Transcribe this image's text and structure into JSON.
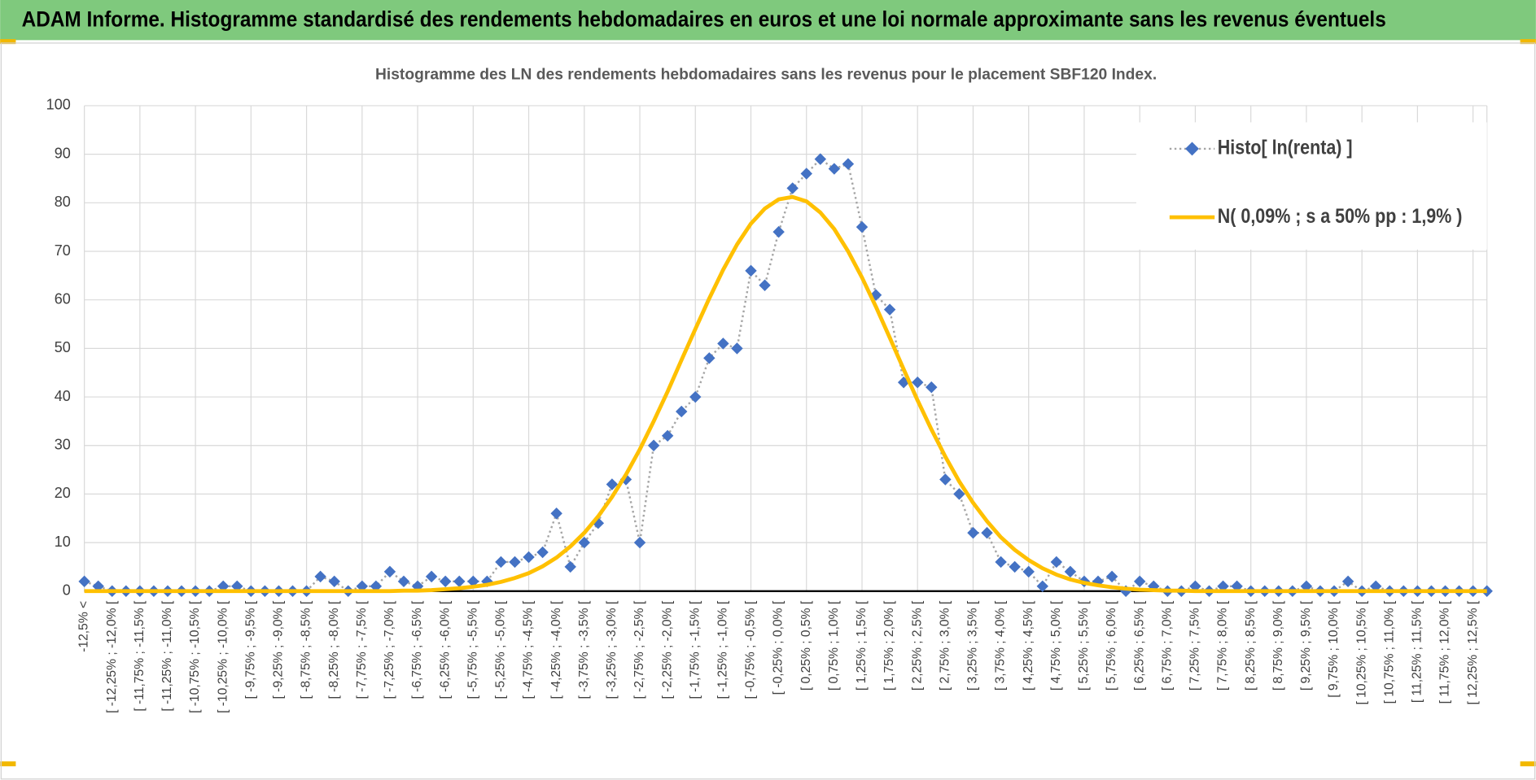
{
  "header": {
    "title": "ADAM Informe. Histogramme standardisé des rendements hebdomadaires en euros et une loi normale approximante sans les revenus éventuels"
  },
  "chart_data": {
    "type": "line",
    "title": "Histogramme  des LN des rendements hebdomadaires sans les revenus pour le placement SBF120  Index.",
    "categories": [
      "-12,5% <",
      null,
      "[ -12,25% ; -12,0% [",
      null,
      "[ -11,75% ; -11,5% [",
      null,
      "[ -11,25% ; -11,0% [",
      null,
      "[ -10,75% ; -10,5% [",
      null,
      "[ -10,25% ; -10,0% [",
      null,
      "[ -9,75% ; -9,5% [",
      null,
      "[ -9,25% ; -9,0% [",
      null,
      "[ -8,75% ; -8,5% [",
      null,
      "[ -8,25% ; -8,0% [",
      null,
      "[ -7,75% ; -7,5% [",
      null,
      "[ -7,25% ; -7,0% [",
      null,
      "[ -6,75% ; -6,5% [",
      null,
      "[ -6,25% ; -6,0% [",
      null,
      "[ -5,75% ; -5,5% [",
      null,
      "[ -5,25% ; -5,0% [",
      null,
      "[ -4,75% ; -4,5% [",
      null,
      "[ -4,25% ; -4,0% [",
      null,
      "[ -3,75% ; -3,5% [",
      null,
      "[ -3,25% ; -3,0% [",
      null,
      "[ -2,75% ; -2,5% [",
      null,
      "[ -2,25% ; -2,0% [",
      null,
      "[ -1,75% ; -1,5% [",
      null,
      "[ -1,25% ; -1,0% [",
      null,
      "[ -0,75% ; -0,5% [",
      null,
      "[ -0,25% ; 0,0% [",
      null,
      "[ 0,25% ; 0,5% [",
      null,
      "[ 0,75% ; 1,0% [",
      null,
      "[ 1,25% ; 1,5% [",
      null,
      "[ 1,75% ; 2,0% [",
      null,
      "[ 2,25% ; 2,5% [",
      null,
      "[ 2,75% ; 3,0% [",
      null,
      "[ 3,25% ; 3,5% [",
      null,
      "[ 3,75% ; 4,0% [",
      null,
      "[ 4,25% ; 4,5% [",
      null,
      "[ 4,75% ; 5,0% [",
      null,
      "[ 5,25% ; 5,5% [",
      null,
      "[ 5,75% ; 6,0% [",
      null,
      "[ 6,25% ; 6,5% [",
      null,
      "[ 6,75% ; 7,0% [",
      null,
      "[ 7,25% ; 7,5% [",
      null,
      "[ 7,75% ; 8,0% [",
      null,
      "[ 8,25% ; 8,5% [",
      null,
      "[ 8,75% ; 9,0% [",
      null,
      "[ 9,25% ; 9,5% [",
      null,
      "[ 9,75% ; 10,0% [",
      null,
      "[ 10,25% ; 10,5% [",
      null,
      "[ 10,75% ; 11,0% [",
      null,
      "[ 11,25% ; 11,5% [",
      null,
      "[ 11,75% ; 12,0% [",
      null,
      "[ 12,25% ; 12,5% [",
      null
    ],
    "series": [
      {
        "name": "Histo[ ln(renta) ]",
        "color": "#4472c4",
        "line_color": "#a5a5a5",
        "line_style": "dotted",
        "marker": "diamond",
        "values": [
          2,
          1,
          0,
          0,
          0,
          0,
          0,
          0,
          0,
          0,
          1,
          1,
          0,
          0,
          0,
          0,
          0,
          3,
          2,
          0,
          1,
          1,
          4,
          2,
          1,
          3,
          2,
          2,
          2,
          2,
          6,
          6,
          7,
          8,
          16,
          5,
          10,
          14,
          22,
          23,
          10,
          30,
          32,
          37,
          40,
          48,
          51,
          50,
          66,
          63,
          74,
          83,
          86,
          89,
          87,
          88,
          75,
          61,
          58,
          43,
          43,
          42,
          23,
          20,
          12,
          12,
          6,
          5,
          4,
          1,
          6,
          4,
          2,
          2,
          3,
          0,
          2,
          1,
          0,
          0,
          1,
          0,
          1,
          1,
          0,
          0,
          0,
          0,
          1,
          0,
          0,
          2,
          0,
          1,
          0,
          0,
          0,
          0,
          0,
          0,
          0,
          0
        ]
      },
      {
        "name": "N( 0,09% ; s a 50% pp : 1,9% )",
        "color": "#ffc000",
        "line_style": "solid",
        "marker": "none",
        "values": [
          0,
          0,
          0,
          0,
          0,
          0,
          0,
          0,
          0,
          0,
          0,
          0,
          0,
          0,
          0,
          0,
          0,
          0,
          0,
          0,
          0,
          0,
          0,
          0.1,
          0.1,
          0.2,
          0.4,
          0.6,
          0.9,
          1.3,
          1.9,
          2.7,
          3.7,
          5.1,
          6.9,
          9.2,
          12.0,
          15.4,
          19.4,
          24.0,
          29.2,
          35.0,
          41.1,
          47.6,
          54.0,
          60.3,
          66.2,
          71.4,
          75.7,
          78.8,
          80.7,
          81.2,
          80.3,
          78.0,
          74.6,
          70.0,
          64.6,
          58.6,
          52.2,
          45.7,
          39.3,
          33.3,
          27.7,
          22.6,
          18.2,
          14.4,
          11.1,
          8.5,
          6.4,
          4.7,
          3.4,
          2.4,
          1.7,
          1.2,
          0.8,
          0.5,
          0.3,
          0.2,
          0.1,
          0.1,
          0,
          0,
          0,
          0,
          0,
          0,
          0,
          0,
          0,
          0,
          0,
          0,
          0,
          0,
          0,
          0,
          0,
          0,
          0,
          0,
          0,
          0
        ]
      }
    ],
    "ylim": [
      0,
      100
    ],
    "yticks": [
      0,
      10,
      20,
      30,
      40,
      50,
      60,
      70,
      80,
      90,
      100
    ],
    "grid": true,
    "legend": "top-right"
  }
}
